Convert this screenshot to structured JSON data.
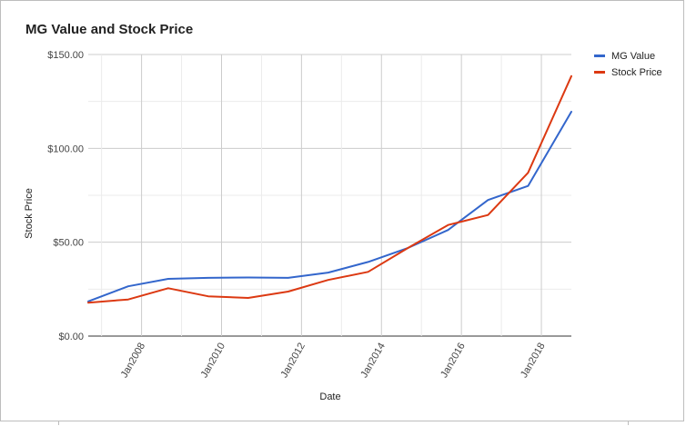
{
  "chart_data": {
    "type": "line",
    "title": "MG Value and Stock Price",
    "xlabel": "Date",
    "ylabel": "Stock Price",
    "xlim": [
      "2006-09",
      "2018-10"
    ],
    "ylim": [
      0,
      150
    ],
    "x_ticks": [
      "Jan2008",
      "Jan2010",
      "Jan2012",
      "Jan2014",
      "Jan2016",
      "Jan2018"
    ],
    "y_ticks": [
      "$0.00",
      "$50.00",
      "$100.00",
      "$150.00"
    ],
    "grid": true,
    "legend_position": "right",
    "x": [
      "2006-09",
      "2007-09",
      "2008-09",
      "2009-09",
      "2010-09",
      "2011-09",
      "2012-09",
      "2013-09",
      "2014-09",
      "2015-09",
      "2016-09",
      "2017-09",
      "2018-10"
    ],
    "series": [
      {
        "name": "MG Value",
        "color": "#3366cc",
        "values": [
          18.5,
          26.5,
          30.5,
          31.0,
          31.2,
          31.0,
          33.8,
          39.5,
          47.0,
          56.5,
          72.5,
          80.0,
          119.5
        ]
      },
      {
        "name": "Stock Price",
        "color": "#dc3912",
        "values": [
          17.8,
          19.5,
          25.5,
          21.2,
          20.3,
          23.7,
          29.9,
          34.2,
          47.0,
          59.2,
          64.5,
          87.0,
          138.5
        ]
      }
    ]
  }
}
